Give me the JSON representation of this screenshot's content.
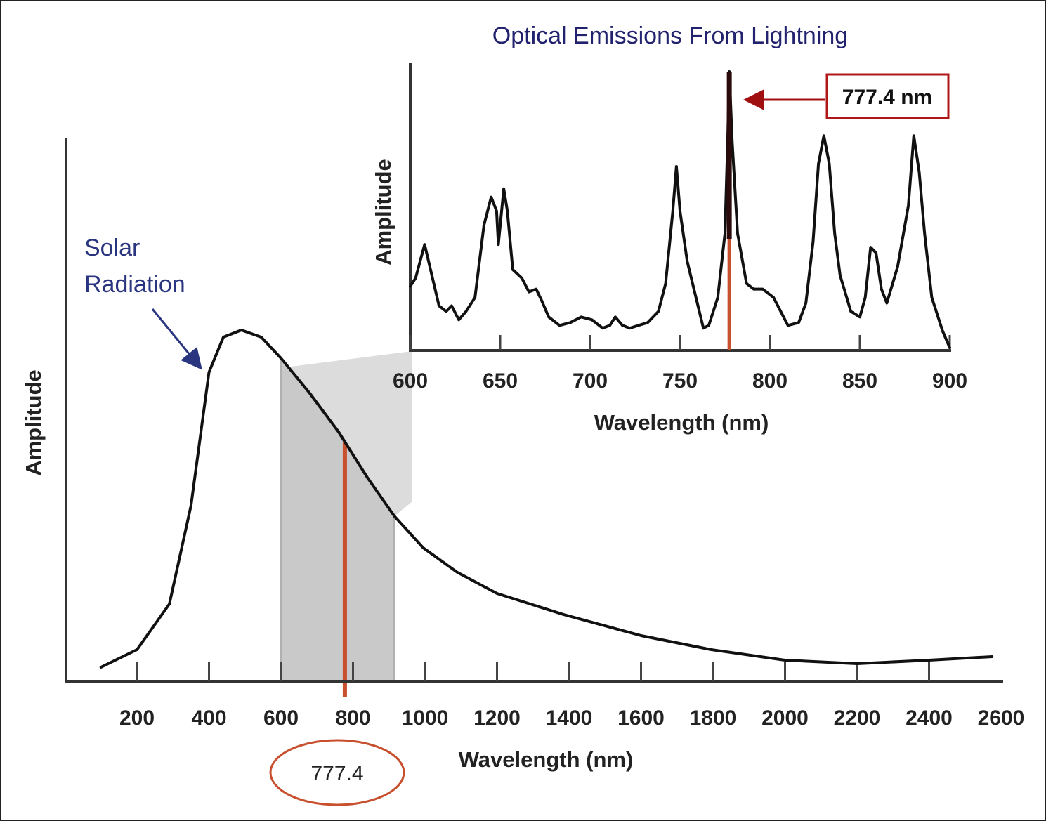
{
  "chart_data": [
    {
      "type": "line",
      "xlabel": "Wavelength (nm)",
      "ylabel": "Amplitude",
      "xlim": [
        100,
        2600
      ],
      "xticks": [
        200,
        400,
        600,
        800,
        1000,
        1200,
        1400,
        1600,
        1800,
        2000,
        2200,
        2400,
        2600
      ],
      "ylim": [
        0,
        1
      ],
      "grid": false,
      "series": [
        {
          "name": "Solar Radiation",
          "x": [
            100,
            200,
            290,
            350,
            400,
            440,
            490,
            545,
            600,
            680,
            760,
            840,
            915,
            995,
            1090,
            1200,
            1385,
            1600,
            1795,
            2000,
            2200,
            2400,
            2575
          ],
          "y": [
            0.04,
            0.09,
            0.22,
            0.5,
            0.88,
            0.98,
            1.0,
            0.98,
            0.92,
            0.82,
            0.71,
            0.58,
            0.47,
            0.38,
            0.31,
            0.25,
            0.19,
            0.13,
            0.09,
            0.06,
            0.05,
            0.06,
            0.07
          ]
        }
      ],
      "highlight_band": [
        600,
        915
      ],
      "marker_line": 777.4,
      "marker_label": "777.4",
      "marker_color": "#c8502e",
      "annotation": {
        "line1": "Solar",
        "line2": "Radiation",
        "color": "#2a3580"
      }
    },
    {
      "type": "line",
      "title": "Optical Emissions From Lightning",
      "xlabel": "Wavelength (nm)",
      "ylabel": "Amplitude",
      "xlim": [
        600,
        900
      ],
      "xticks": [
        600,
        650,
        700,
        750,
        800,
        850,
        900
      ],
      "ylim": [
        0,
        1
      ],
      "grid": false,
      "series": [
        {
          "x": [
            600,
            603,
            608,
            612,
            616,
            620,
            623,
            627,
            631,
            636,
            641,
            645,
            648,
            649,
            652,
            654,
            657,
            662,
            666,
            670,
            673,
            677,
            683,
            689,
            695,
            701,
            707,
            711,
            714,
            718,
            722,
            732,
            738,
            742,
            746,
            748,
            750,
            754,
            757,
            763,
            766,
            771,
            775,
            776.5,
            777.4,
            779,
            782,
            787,
            791,
            796,
            802,
            806,
            810,
            816,
            820,
            824,
            827,
            830,
            833,
            836,
            839,
            845,
            850,
            853,
            856,
            859,
            862,
            865,
            871,
            877,
            880,
            883,
            886,
            890,
            896,
            900
          ],
          "y": [
            0.23,
            0.26,
            0.38,
            0.27,
            0.16,
            0.14,
            0.16,
            0.11,
            0.14,
            0.19,
            0.45,
            0.55,
            0.5,
            0.38,
            0.58,
            0.5,
            0.29,
            0.26,
            0.21,
            0.22,
            0.18,
            0.12,
            0.09,
            0.1,
            0.12,
            0.11,
            0.08,
            0.09,
            0.12,
            0.09,
            0.08,
            0.1,
            0.14,
            0.24,
            0.5,
            0.66,
            0.5,
            0.32,
            0.24,
            0.08,
            0.09,
            0.19,
            0.42,
            0.75,
            1.0,
            0.75,
            0.42,
            0.24,
            0.22,
            0.22,
            0.19,
            0.14,
            0.09,
            0.1,
            0.17,
            0.39,
            0.67,
            0.77,
            0.67,
            0.42,
            0.27,
            0.14,
            0.12,
            0.19,
            0.37,
            0.35,
            0.22,
            0.17,
            0.3,
            0.52,
            0.77,
            0.64,
            0.42,
            0.19,
            0.07,
            0.01
          ]
        }
      ],
      "marker_line": 777.4,
      "marker_label": "777.4 nm",
      "marker_color": "#c8502e",
      "callout_color": "#b01818"
    }
  ]
}
